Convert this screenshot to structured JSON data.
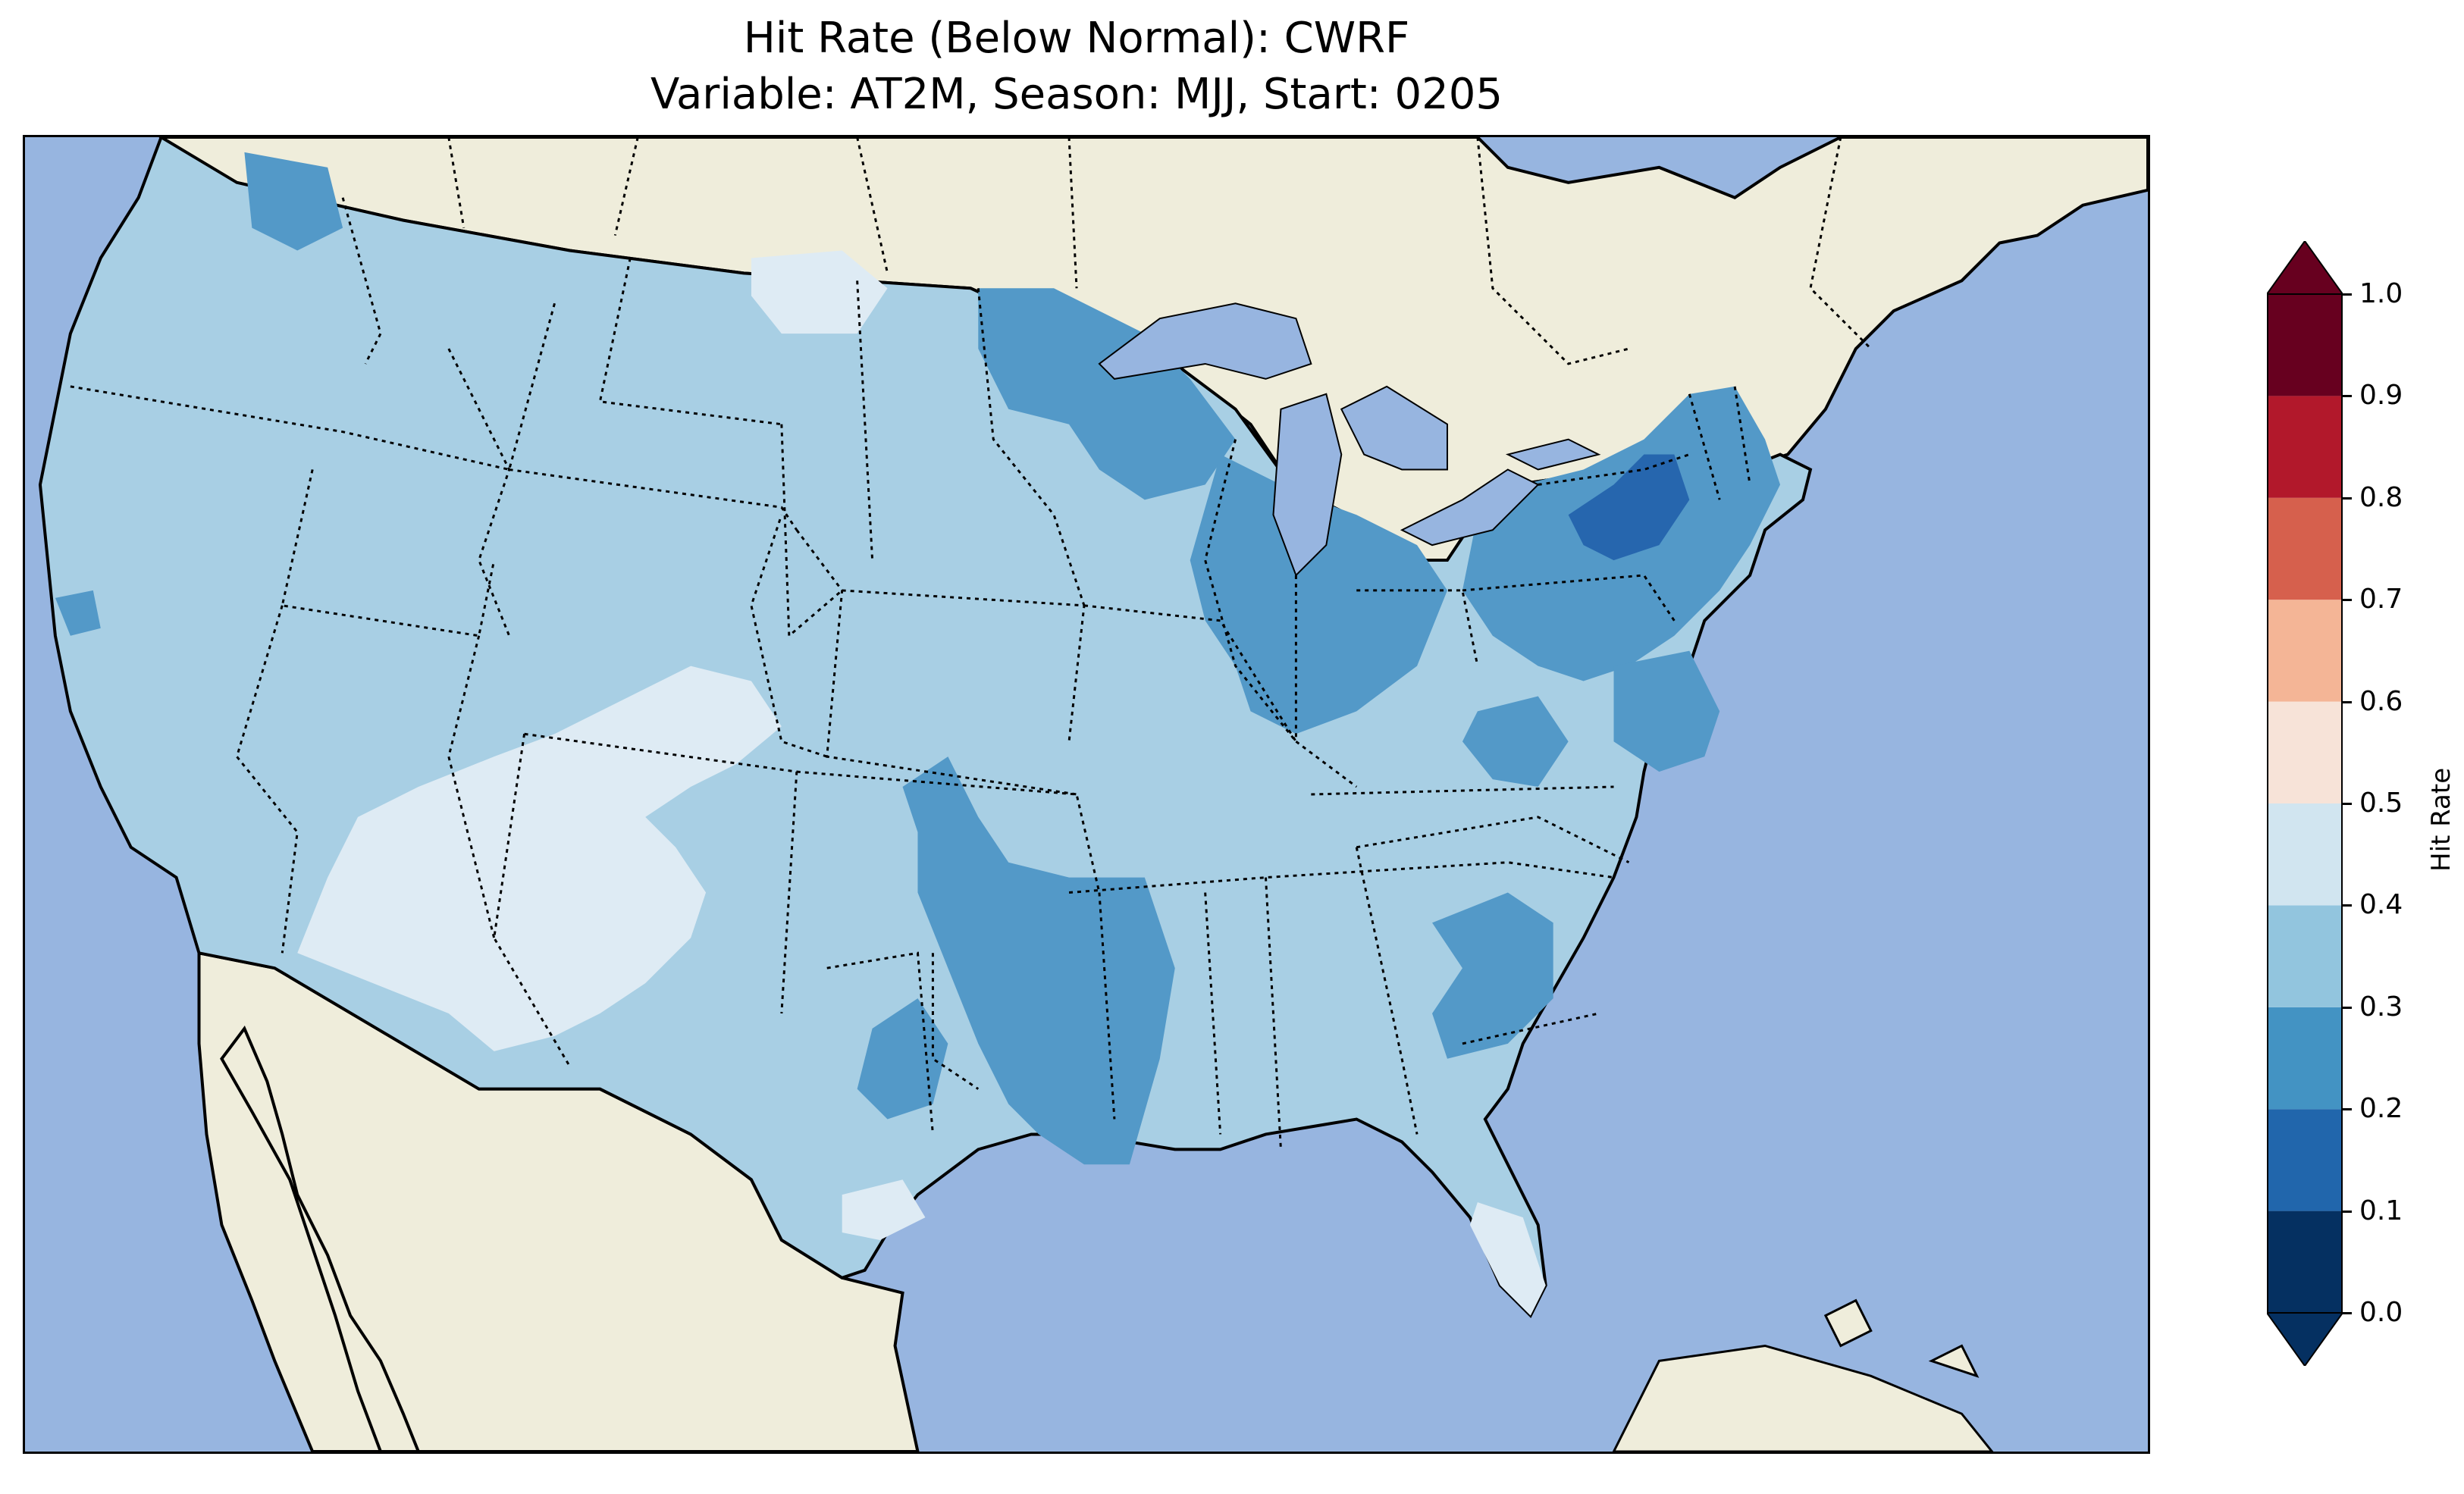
{
  "title": {
    "line1": "Hit Rate (Below Normal): CWRF",
    "line2": "Variable: AT2M, Season: MJJ, Start: 0205"
  },
  "map": {
    "ocean_color": "#97b5e0",
    "land_color": "#efeddb",
    "lake_color": "#97b5e0",
    "region_colors": {
      "0.4-0.5": "#deebf4",
      "0.3-0.4": "#a8cfe4",
      "0.2-0.3": "#5399c8",
      "0.1-0.2": "#2666ae"
    }
  },
  "colorbar": {
    "label": "Hit Rate",
    "ticks": [
      "0.0",
      "0.1",
      "0.2",
      "0.3",
      "0.4",
      "0.5",
      "0.6",
      "0.7",
      "0.8",
      "0.9",
      "1.0"
    ],
    "bins": [
      {
        "range": "0.0-0.1",
        "color": "#053061"
      },
      {
        "range": "0.1-0.2",
        "color": "#2166ac"
      },
      {
        "range": "0.2-0.3",
        "color": "#4393c3"
      },
      {
        "range": "0.3-0.4",
        "color": "#92c5de"
      },
      {
        "range": "0.4-0.5",
        "color": "#d1e5f0"
      },
      {
        "range": "0.5-0.6",
        "color": "#f7e3d8"
      },
      {
        "range": "0.6-0.7",
        "color": "#f4b596"
      },
      {
        "range": "0.7-0.8",
        "color": "#d6604d"
      },
      {
        "range": "0.8-0.9",
        "color": "#b2182b"
      },
      {
        "range": "0.9-1.0",
        "color": "#67001f"
      }
    ],
    "under_color": "#053061",
    "over_color": "#67001f"
  }
}
